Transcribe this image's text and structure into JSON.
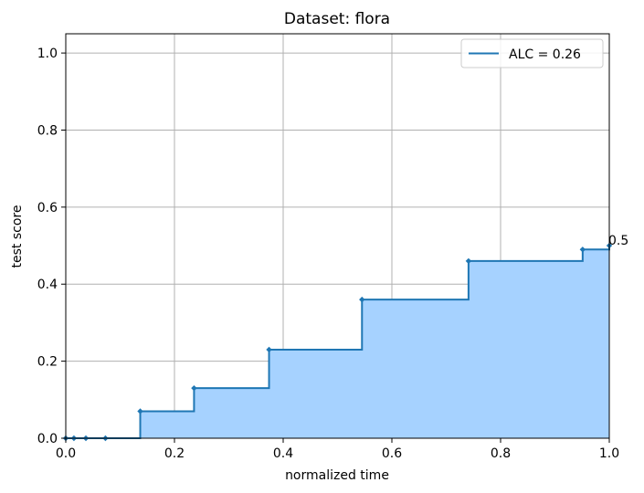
{
  "chart_data": {
    "type": "area",
    "title": "Dataset: flora",
    "xlabel": "normalized time",
    "ylabel": "test score",
    "xlim": [
      0.0,
      1.0
    ],
    "ylim": [
      0.0,
      1.05
    ],
    "xticks": [
      "0.0",
      "0.2",
      "0.4",
      "0.6",
      "0.8",
      "1.0"
    ],
    "yticks": [
      "0.0",
      "0.2",
      "0.4",
      "0.6",
      "0.8",
      "1.0"
    ],
    "grid": true,
    "legend_position": "top-right",
    "step": "post",
    "series": [
      {
        "name": "ALC = 0.26",
        "x": [
          0.0,
          0.015,
          0.037,
          0.073,
          0.137,
          0.236,
          0.374,
          0.545,
          0.741,
          0.951,
          1.0
        ],
        "y": [
          0.0,
          0.0,
          0.0,
          0.0,
          0.07,
          0.13,
          0.23,
          0.36,
          0.46,
          0.49,
          0.5
        ]
      }
    ],
    "annotations": [
      {
        "text": "0.5",
        "x": 1.0,
        "y": 0.5
      }
    ],
    "colors": {
      "line": "#1f77b4",
      "fill": "#a6d2ff",
      "grid": "#b0b0b0"
    }
  }
}
